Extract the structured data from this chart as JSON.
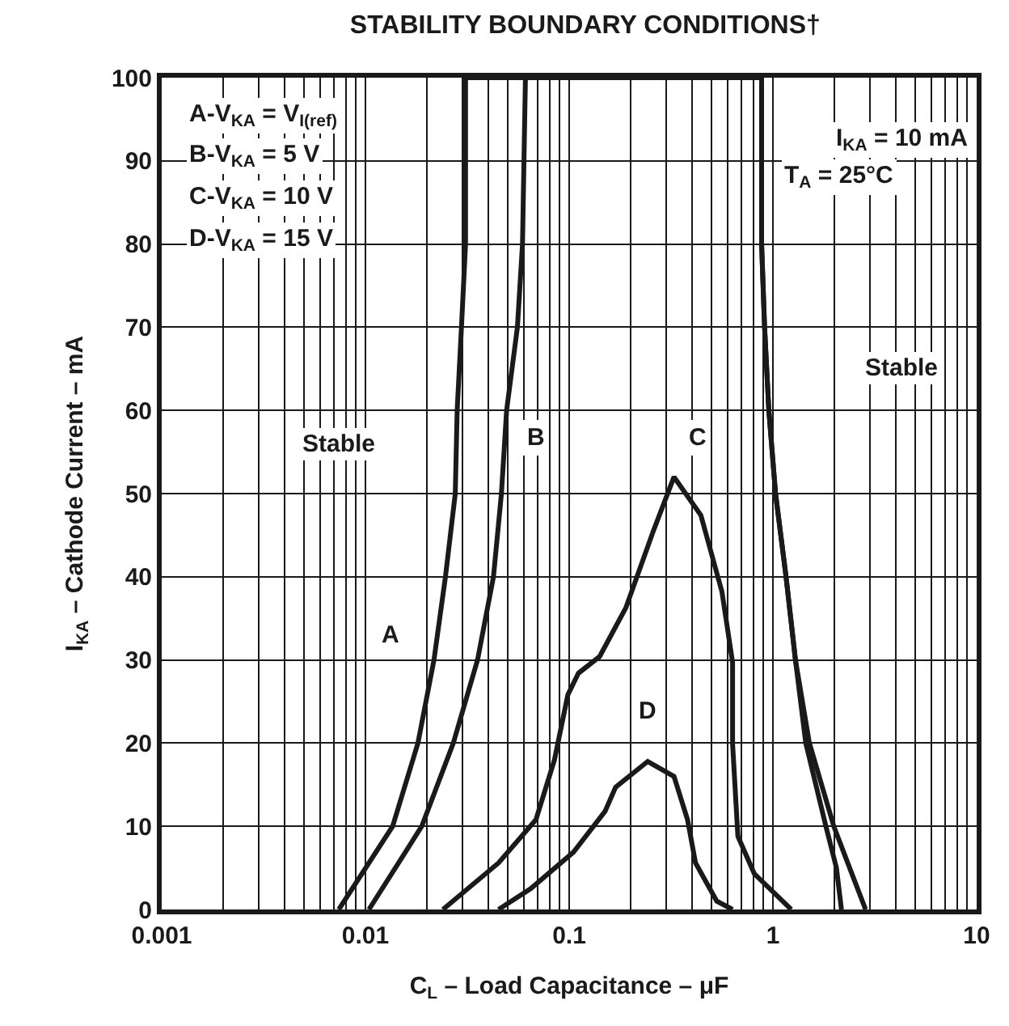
{
  "chart_data": {
    "type": "line",
    "title": "STABILITY BOUNDARY CONDITIONS†",
    "xlabel": "C$_{L}$ – Load Capacitance – μF",
    "ylabel": "I$_{KA}$ – Cathode Current – mA",
    "log": "x",
    "grid": true,
    "marker": "none",
    "line_style": "solid",
    "xlim": [
      0.001,
      10
    ],
    "xticks": [
      0.001,
      0.01,
      0.1,
      1,
      10
    ],
    "ylim": [
      0,
      100
    ],
    "yticks": [
      0,
      10,
      20,
      30,
      40,
      50,
      60,
      70,
      80,
      90,
      100
    ],
    "series": [
      {
        "color": "#1a1a1a",
        "x": [
          0.0074,
          0.0136,
          0.0181,
          0.0217,
          0.0247,
          0.0276,
          0.0282,
          0.0296,
          0.031,
          0.031,
          0.88,
          0.88,
          0.91,
          0.955,
          1.03,
          1.16,
          1.29,
          1.51,
          1.99,
          2.38,
          2.85
        ],
        "values": [
          0,
          10,
          20,
          30,
          40,
          50,
          60,
          70,
          80,
          100,
          100,
          80,
          70,
          60,
          50,
          40,
          30,
          20,
          10,
          5,
          0
        ]
      },
      {
        "color": "#1a1a1a",
        "x": [
          0.0104,
          0.0189,
          0.027,
          0.0355,
          0.0425,
          0.0465,
          0.0493,
          0.0557,
          0.059,
          0.061,
          0.88,
          0.88,
          0.91,
          0.955,
          1.03,
          1.16,
          1.29,
          1.45,
          1.82,
          2.05,
          2.17
        ],
        "values": [
          0,
          10,
          20,
          30,
          40,
          50,
          60,
          70,
          80,
          100,
          100,
          80,
          70,
          60,
          50,
          40,
          30,
          20,
          10,
          5,
          0
        ]
      },
      {
        "color": "#1a1a1a",
        "x": [
          0.024,
          0.045,
          0.0687,
          0.0847,
          0.0985,
          0.111,
          0.141,
          0.19,
          0.258,
          0.327,
          0.443,
          0.562,
          0.634,
          0.634,
          0.673,
          0.81,
          1.23
        ],
        "values": [
          0,
          5.6,
          10.8,
          18,
          25.8,
          28.4,
          30.4,
          36.3,
          45.4,
          52,
          47.4,
          38.2,
          29.7,
          19.9,
          8.8,
          4.3,
          0
        ]
      },
      {
        "color": "#1a1a1a",
        "x": [
          0.045,
          0.0647,
          0.105,
          0.15,
          0.169,
          0.243,
          0.327,
          0.381,
          0.417,
          0.53,
          0.634
        ],
        "values": [
          0,
          2.5,
          6.9,
          11.8,
          14.7,
          17.8,
          16,
          10.8,
          5.6,
          1,
          0
        ]
      }
    ],
    "annotations": [
      "A-V$_{KA}$ = V$_{I(ref)}$",
      "B-V$_{KA}$ = 5 V",
      "C-V$_{KA}$ = 10 V",
      "D-V$_{KA}$ = 15 V",
      "I$_{KA}$ = 10 mA",
      "T$_{A}$ = 25°C",
      {
        "text": "A",
        "x": 0.0132,
        "y": 33
      },
      {
        "text": "B",
        "x": 0.069,
        "y": 56.8
      },
      {
        "text": "C",
        "x": 0.427,
        "y": 56.8
      },
      {
        "text": "D",
        "x": 0.244,
        "y": 23.8
      },
      "Stable",
      "Stable"
    ]
  }
}
